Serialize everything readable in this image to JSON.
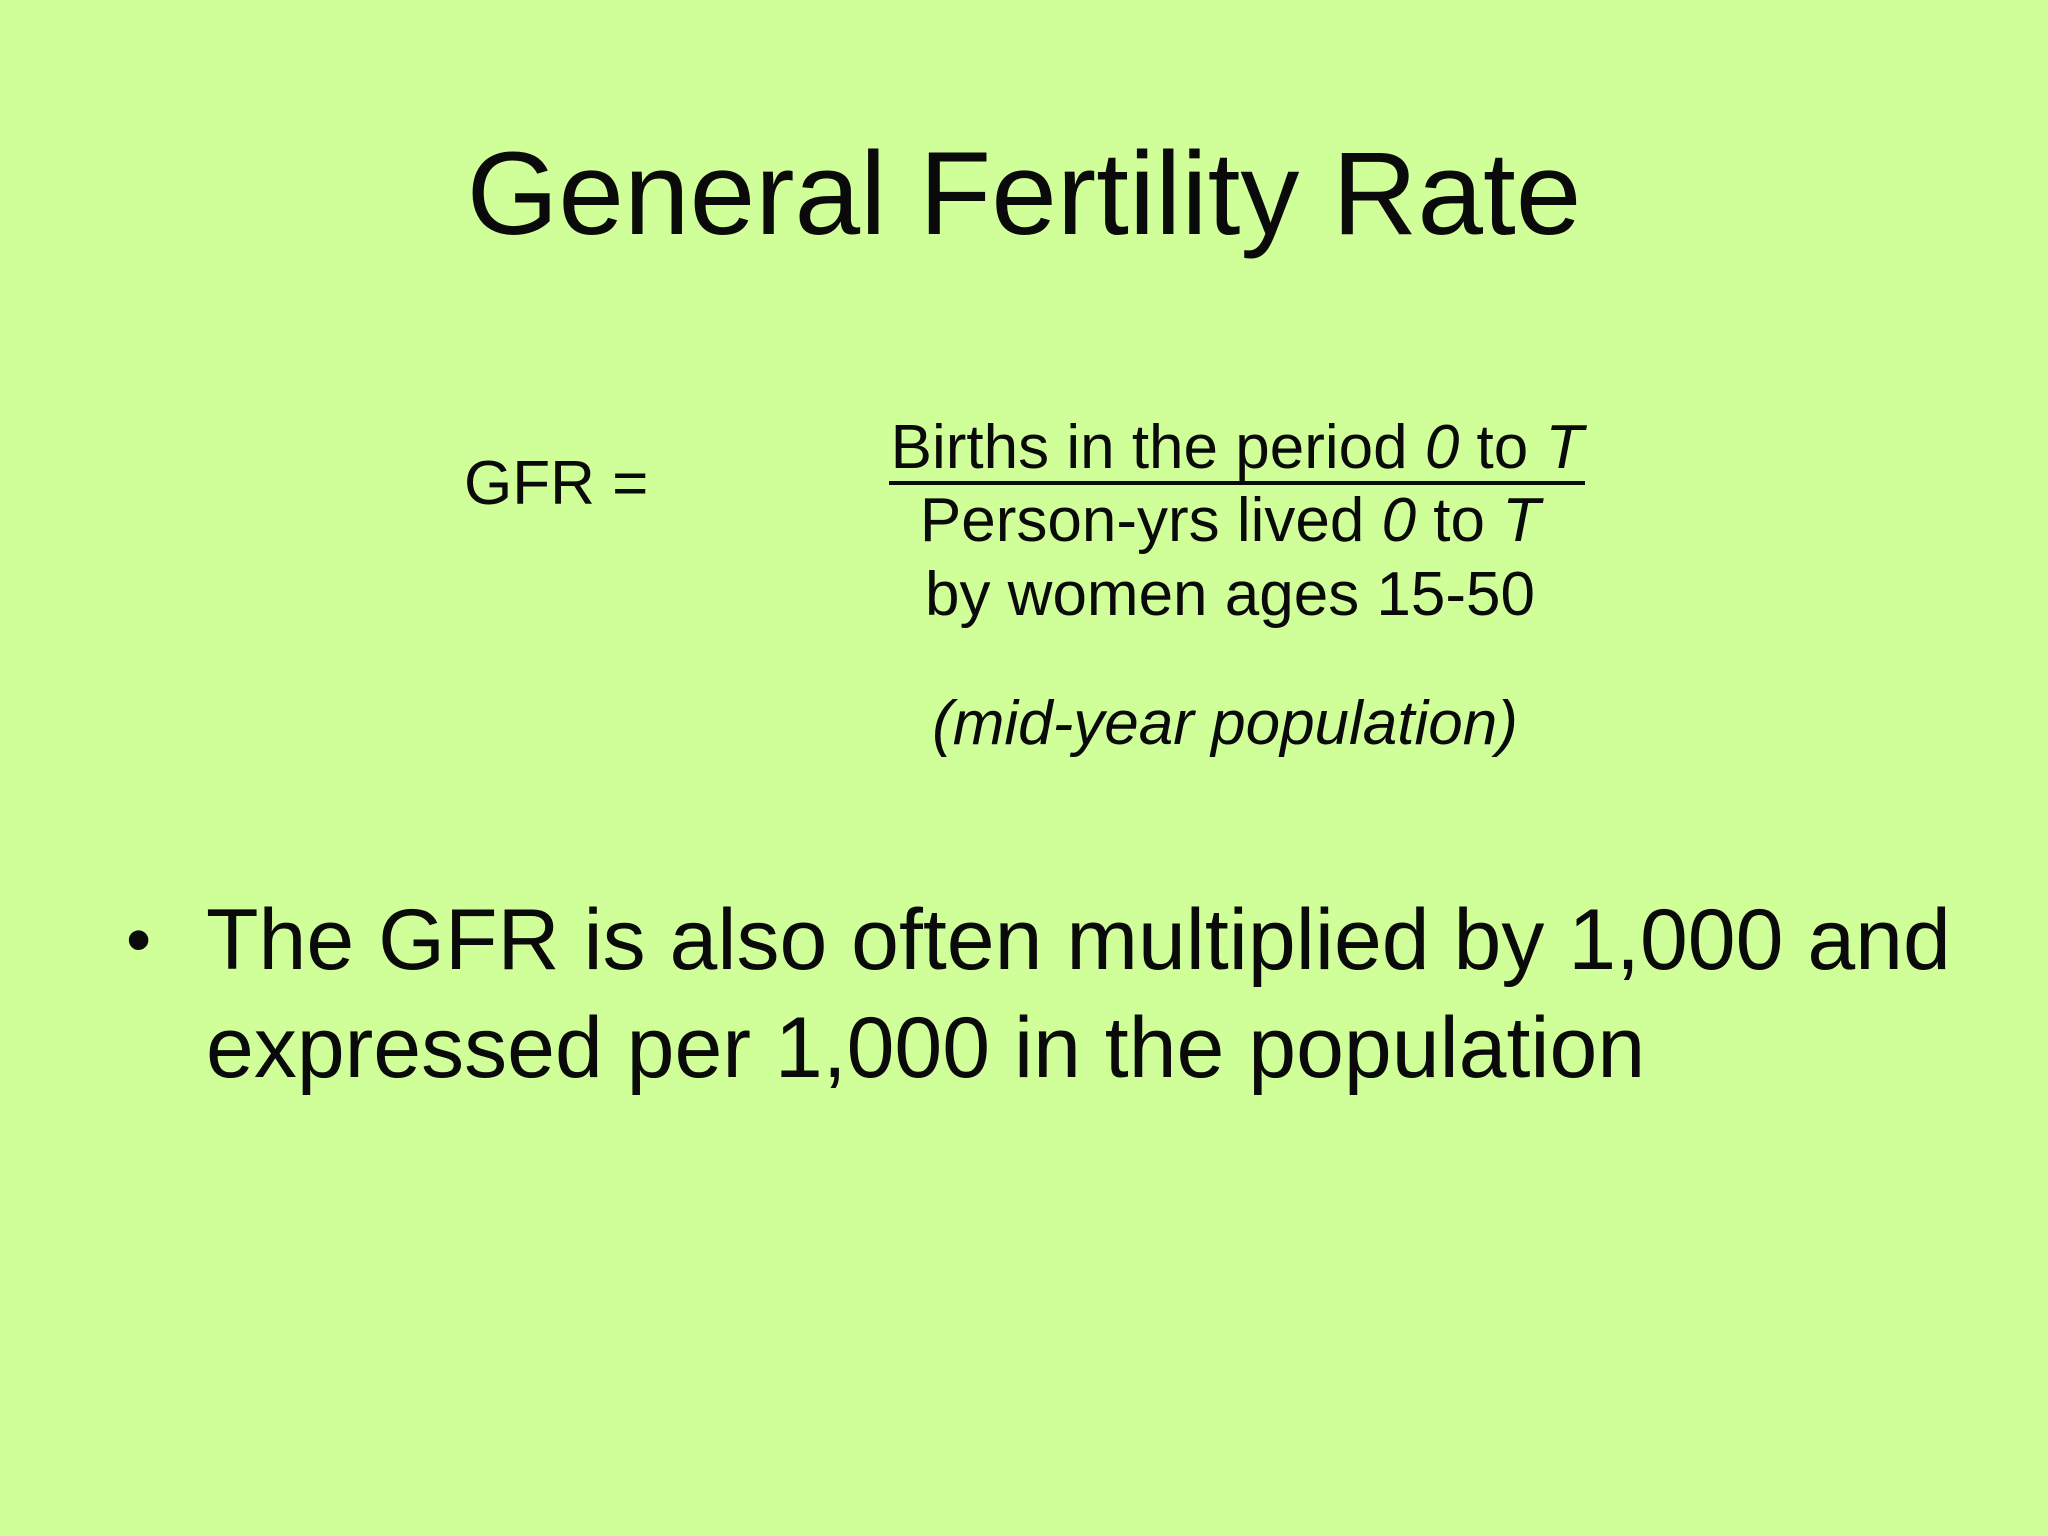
{
  "slide": {
    "title": "General Fertility Rate",
    "formula": {
      "lhs": "GFR =",
      "numerator_pre": "Births in the period ",
      "numerator_var1": "0",
      "numerator_mid": " to ",
      "numerator_var2": "T",
      "denominator_pre": "Person-yrs lived ",
      "denominator_var1": "0",
      "denominator_mid": " to ",
      "denominator_var2": "T",
      "denominator_line2": "by women ages 15-50",
      "note": "(mid-year population)"
    },
    "bullets": [
      {
        "mark": "•",
        "text": "The GFR is also often multiplied by 1,000 and expressed per 1,000 in the population"
      }
    ],
    "colors": {
      "background": "#d0ff9a",
      "text": "#0a0a0a"
    }
  }
}
